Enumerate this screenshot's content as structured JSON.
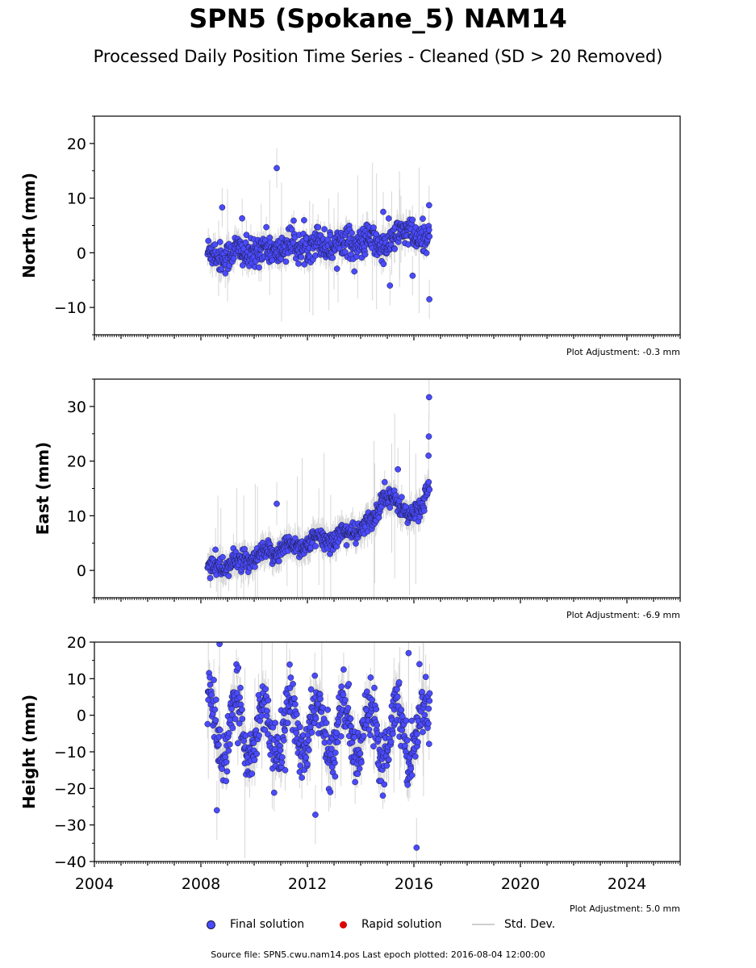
{
  "title": "SPN5 (Spokane_5) NAM14",
  "subtitle": "Processed Daily Position Time Series - Cleaned (SD > 20 Removed)",
  "source_text": "Source file: SPN5.cwu.nam14.pos  Last epoch plotted: 2016-08-04 12:00:00",
  "legend": {
    "final": "Final solution",
    "rapid": "Rapid solution",
    "std": "Std. Dev."
  },
  "colors": {
    "final": "#4a4aff",
    "final_edge": "#1a1a3a",
    "rapid": "#dd0000",
    "std": "#b8b8b8"
  },
  "chart_data": [
    {
      "type": "scatter",
      "ylabel": "North (mm)",
      "adjustment": "Plot Adjustment: -0.3 mm",
      "xlim": [
        2004,
        2026
      ],
      "ylim": [
        -15,
        25
      ],
      "yticks": [
        -10,
        0,
        10,
        20
      ],
      "ytick_labels": [
        "−10",
        "0",
        "10",
        "20"
      ],
      "x_start": 2008.25,
      "x_end": 2016.59,
      "trend_points": [
        [
          2008.25,
          -0.5
        ],
        [
          2010,
          0.2
        ],
        [
          2012,
          1.5
        ],
        [
          2014,
          2.0
        ],
        [
          2014.8,
          1.5
        ],
        [
          2015.4,
          2.5
        ],
        [
          2015.8,
          5.0
        ],
        [
          2016.2,
          1.5
        ],
        [
          2016.59,
          3.0
        ]
      ],
      "seasonal_amp": 0.8,
      "noise": 1.4,
      "std": 2.0,
      "outliers": [
        [
          2008.8,
          8.3
        ],
        [
          2009.55,
          6.3
        ],
        [
          2010.85,
          15.5
        ],
        [
          2014.85,
          7.5
        ],
        [
          2015.1,
          -6.0
        ],
        [
          2015.95,
          -4.2
        ],
        [
          2016.58,
          -8.5
        ],
        [
          2016.57,
          8.7
        ]
      ]
    },
    {
      "type": "scatter",
      "ylabel": "East (mm)",
      "adjustment": "Plot Adjustment: -6.9 mm",
      "xlim": [
        2004,
        2026
      ],
      "ylim": [
        -5,
        35
      ],
      "yticks": [
        0,
        10,
        20,
        30
      ],
      "ytick_labels": [
        "0",
        "10",
        "20",
        "30"
      ],
      "x_start": 2008.25,
      "x_end": 2016.59,
      "trend_points": [
        [
          2008.25,
          0.5
        ],
        [
          2009,
          1.0
        ],
        [
          2010,
          2.0
        ],
        [
          2011,
          4.0
        ],
        [
          2012,
          5.0
        ],
        [
          2013,
          6.0
        ],
        [
          2014,
          7.5
        ],
        [
          2014.5,
          9.0
        ],
        [
          2014.9,
          15.0
        ],
        [
          2015.3,
          12.0
        ],
        [
          2015.8,
          10.5
        ],
        [
          2016.3,
          11.0
        ],
        [
          2016.59,
          16.0
        ]
      ],
      "seasonal_amp": 0.6,
      "noise": 0.9,
      "std": 2.2,
      "outliers": [
        [
          2010.85,
          12.2
        ],
        [
          2008.55,
          3.8
        ],
        [
          2016.57,
          31.7
        ],
        [
          2016.56,
          24.5
        ],
        [
          2016.55,
          21.0
        ],
        [
          2015.4,
          18.5
        ]
      ]
    },
    {
      "type": "scatter",
      "ylabel": "Height (mm)",
      "adjustment": "Plot Adjustment: 5.0 mm",
      "xlim": [
        2004,
        2026
      ],
      "xticks": [
        2004,
        2008,
        2012,
        2016,
        2020,
        2024
      ],
      "xtick_labels": [
        "2004",
        "2008",
        "2012",
        "2016",
        "2020",
        "2024"
      ],
      "ylim": [
        -40,
        20
      ],
      "yticks": [
        -40,
        -30,
        -20,
        -10,
        0,
        10,
        20
      ],
      "ytick_labels": [
        "−40",
        "−30",
        "−20",
        "−10",
        "0",
        "10",
        "20"
      ],
      "x_start": 2008.25,
      "x_end": 2016.59,
      "trend_points": [
        [
          2008.25,
          -4
        ],
        [
          2016.59,
          -4
        ]
      ],
      "seasonal_amp": 8,
      "noise": 3.8,
      "std": 4.5,
      "outliers": [
        [
          2008.6,
          -26.0
        ],
        [
          2016.1,
          -36.2
        ],
        [
          2012.3,
          -27.2
        ],
        [
          2008.7,
          19.5
        ],
        [
          2015.8,
          17.0
        ],
        [
          2016.59,
          6.0
        ]
      ]
    }
  ]
}
